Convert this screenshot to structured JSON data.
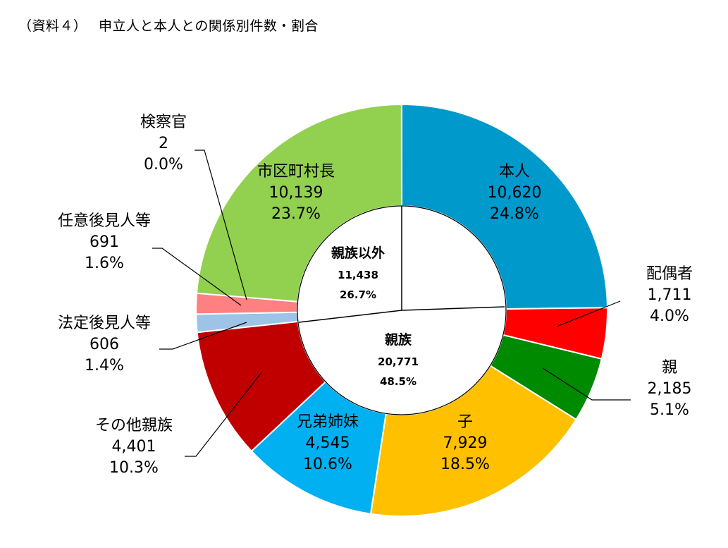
{
  "title": "（資料４）　 申立人と本人との関係別件数・割合",
  "chart_data": {
    "type": "pie",
    "subtype": "donut",
    "outer_slices": [
      {
        "name": "本人",
        "value": 10620,
        "value_label": "10,620",
        "percent": "24.8%",
        "color": "#0099CC"
      },
      {
        "name": "配偶者",
        "value": 1711,
        "value_label": "1,711",
        "percent": "4.0%",
        "color": "#FF0000"
      },
      {
        "name": "親",
        "value": 2185,
        "value_label": "2,185",
        "percent": "5.1%",
        "color": "#008A00"
      },
      {
        "name": "子",
        "value": 7929,
        "value_label": "7,929",
        "percent": "18.5%",
        "color": "#FFC000"
      },
      {
        "name": "兄弟姉妹",
        "value": 4545,
        "value_label": "4,545",
        "percent": "10.6%",
        "color": "#00B0F0"
      },
      {
        "name": "その他親族",
        "value": 4401,
        "value_label": "4,401",
        "percent": "10.3%",
        "color": "#C00000"
      },
      {
        "name": "法定後見人等",
        "value": 606,
        "value_label": "606",
        "percent": "1.4%",
        "color": "#9DC3E6"
      },
      {
        "name": "任意後見人等",
        "value": 691,
        "value_label": "691",
        "percent": "1.6%",
        "color": "#FF8080"
      },
      {
        "name": "市区町村長",
        "value": 10139,
        "value_label": "10,139",
        "percent": "23.7%",
        "color": "#92D050"
      },
      {
        "name": "検察官",
        "value": 2,
        "value_label": "2",
        "percent": "0.0%",
        "color": "#FFFFFF"
      }
    ],
    "inner_groups": [
      {
        "name": "親族以外",
        "value": 11438,
        "value_label": "11,438",
        "percent": "26.7%"
      },
      {
        "name": "親族",
        "value": 20771,
        "value_label": "20,771",
        "percent": "48.5%"
      }
    ]
  }
}
